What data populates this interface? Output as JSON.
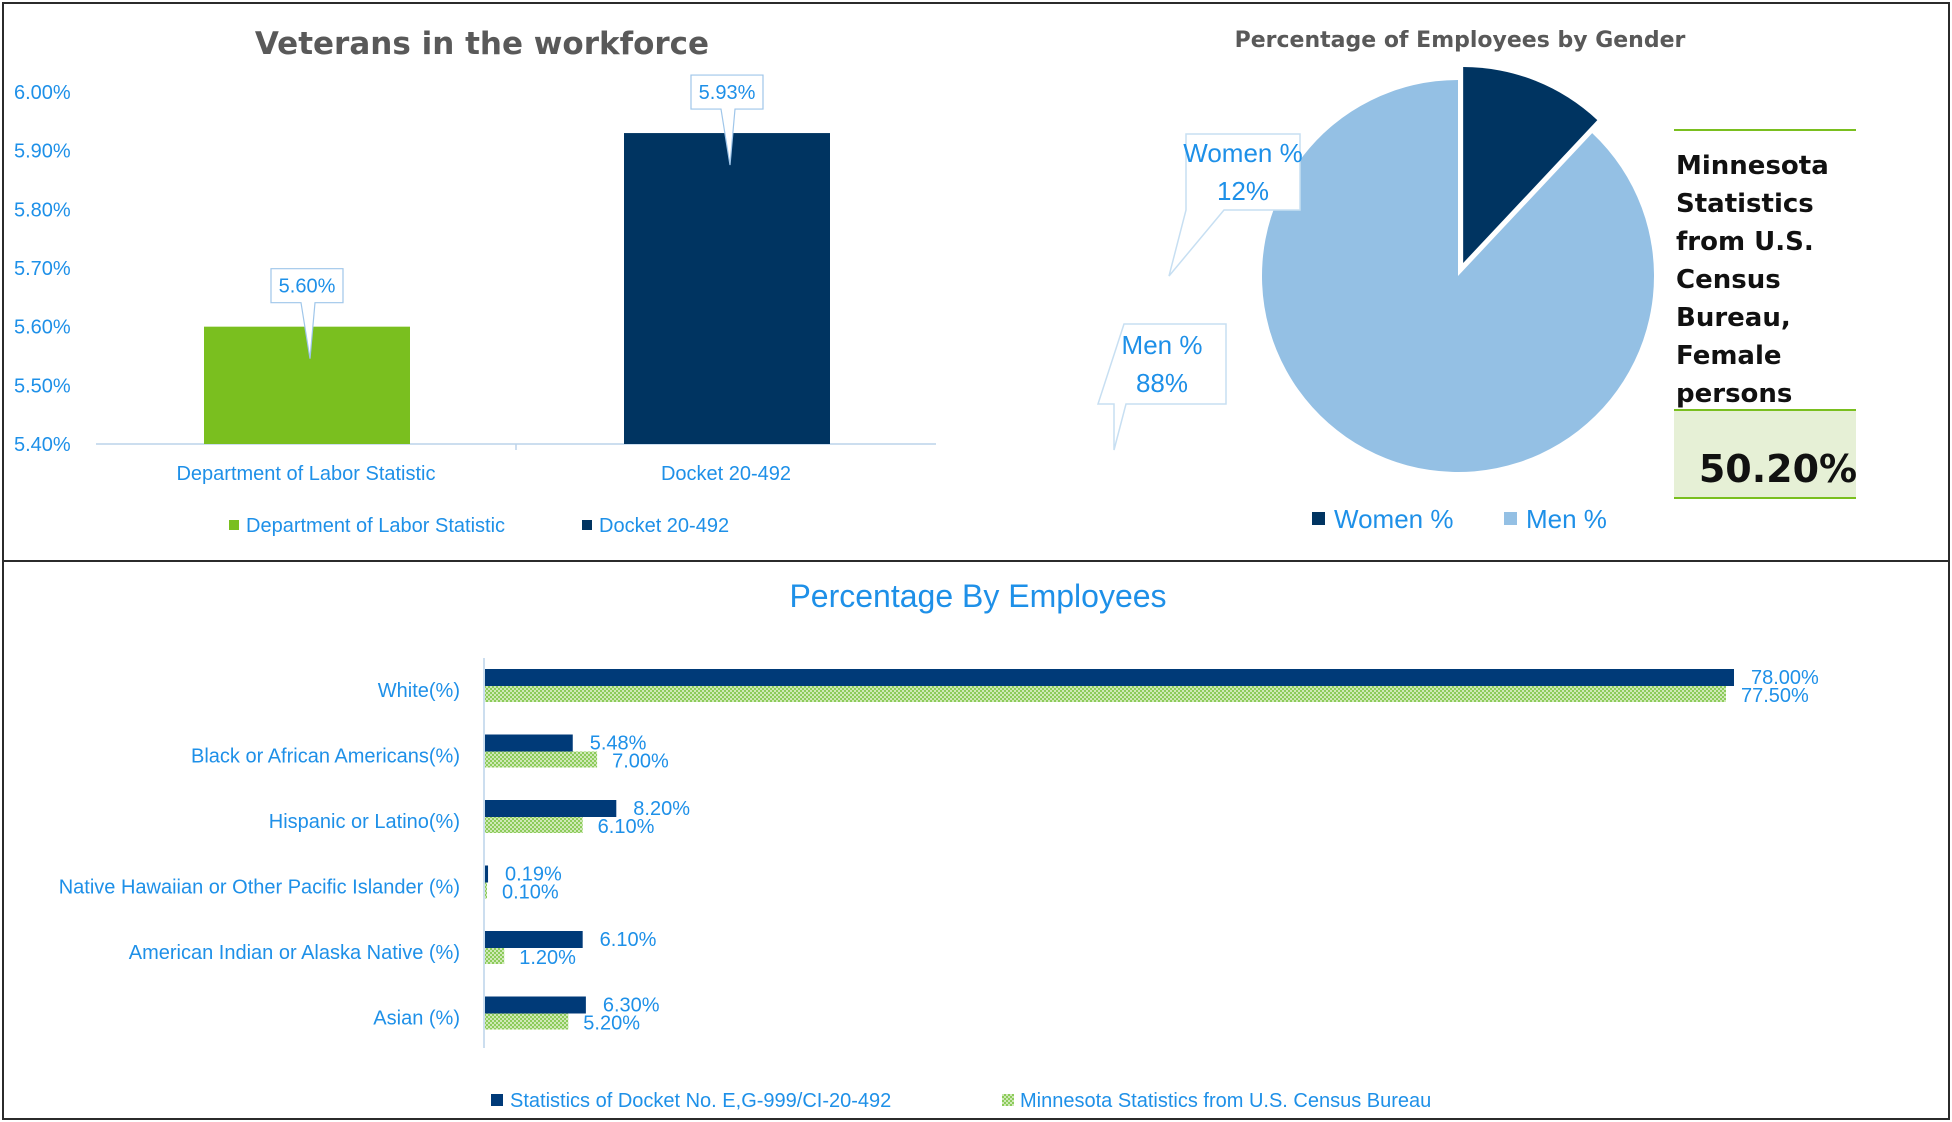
{
  "colors": {
    "green": "#7abf1f",
    "navy": "#003461",
    "light_blue": "#94c0e4",
    "text_blue": "#1e90e8",
    "hatch_green": "#9bd06a",
    "box_fill": "#e6f0d6",
    "rule_green": "#7abf1f"
  },
  "chart_data": [
    {
      "type": "bar",
      "title": "Veterans in the workforce",
      "categories": [
        "Department of Labor Statistic",
        "Docket 20-492"
      ],
      "values": [
        5.6,
        5.93
      ],
      "value_labels": [
        "5.60%",
        "5.93%"
      ],
      "ylim": [
        5.4,
        6.0
      ],
      "yticks": [
        "5.40%",
        "5.50%",
        "5.60%",
        "5.70%",
        "5.80%",
        "5.90%",
        "6.00%"
      ],
      "legend": [
        "Department of Labor Statistic",
        "Docket 20-492"
      ],
      "legend_position": "bottom",
      "grid": false
    },
    {
      "type": "pie",
      "title": "Percentage of Employees by Gender",
      "slices": [
        {
          "name": "Women %",
          "value": 12,
          "label_name": "Women %",
          "label_value": "12%"
        },
        {
          "name": "Men %",
          "value": 88,
          "label_name": "Men %",
          "label_value": "88%"
        }
      ],
      "legend": [
        "Women %",
        "Men %"
      ],
      "legend_position": "bottom",
      "side_box": {
        "lines": [
          "Minnesota",
          "Statistics",
          "from U.S.",
          "Census",
          "Bureau,",
          "Female",
          "persons"
        ],
        "value": "50.20%"
      }
    },
    {
      "type": "bar",
      "orientation": "horizontal",
      "title": "Percentage By Employees",
      "categories": [
        "White(%)",
        "Black or African Americans(%)",
        "Hispanic or Latino(%)",
        "Native Hawaiian or Other Pacific Islander (%)",
        "American Indian or Alaska Native (%)",
        "Asian (%)"
      ],
      "series": [
        {
          "name": "Statistics of Docket No. E,G-999/CI-20-492",
          "values": [
            78.0,
            5.48,
            8.2,
            0.19,
            6.1,
            6.3
          ],
          "labels": [
            "78.00%",
            "5.48%",
            "8.20%",
            "0.19%",
            "6.10%",
            "6.30%"
          ]
        },
        {
          "name": "Minnesota Statistics from U.S. Census Bureau",
          "values": [
            77.5,
            7.0,
            6.1,
            0.1,
            1.2,
            5.2
          ],
          "labels": [
            "77.50%",
            "7.00%",
            "6.10%",
            "0.10%",
            "1.20%",
            "5.20%"
          ]
        }
      ],
      "legend_position": "bottom",
      "grid": false
    }
  ]
}
